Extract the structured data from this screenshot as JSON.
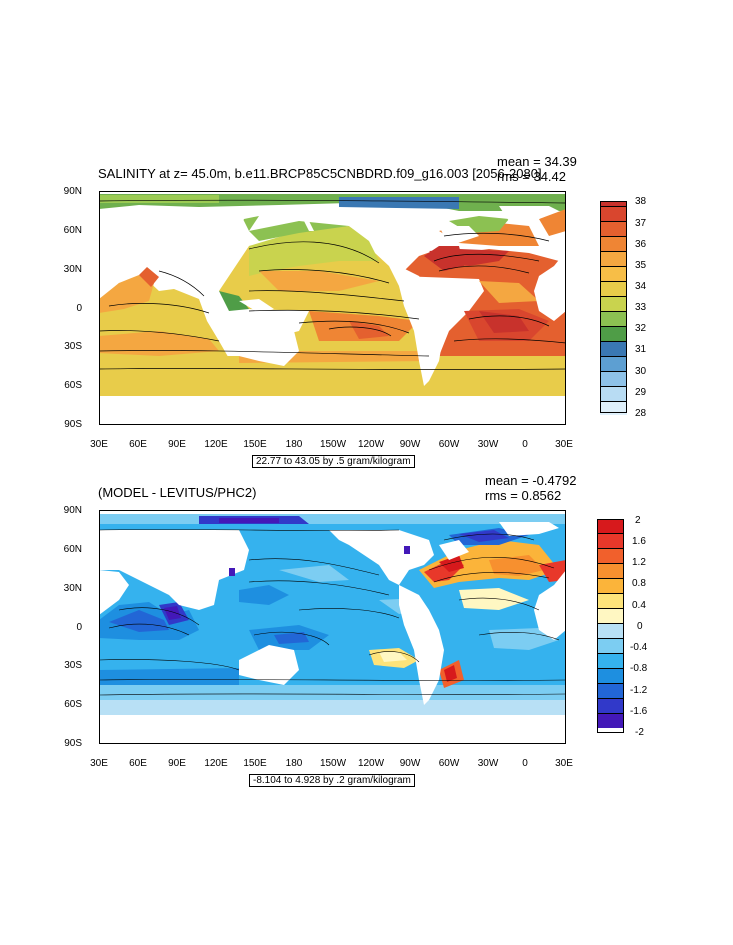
{
  "panels": [
    {
      "title": "SALINITY at z=  45.0m, b.e11.BRCP85C5CNBDRD.f09_g16.003 [2056-2080]",
      "mean": "mean = 34.39",
      "rms": "rms = 34.42",
      "y_ticks": [
        "90N",
        "60N",
        "30N",
        "0",
        "30S",
        "60S",
        "90S"
      ],
      "x_ticks": [
        "30E",
        "60E",
        "90E",
        "120E",
        "150E",
        "180",
        "150W",
        "120W",
        "90W",
        "60W",
        "30W",
        "0",
        "30E"
      ],
      "contour_info": "22.77 to 43.05 by .5 gram/kilogram",
      "colorbar": {
        "labels": [
          "38",
          "37",
          "36",
          "35",
          "34",
          "33",
          "32",
          "31",
          "30",
          "29",
          "28"
        ],
        "colors": [
          "#c8322c",
          "#d9462e",
          "#e4602f",
          "#ef8534",
          "#f4a741",
          "#e8cc4a",
          "#c9d34e",
          "#8cc152",
          "#4f9d47",
          "#3a78b3",
          "#5d9fd2",
          "#8ec2e8",
          "#b8dcf3",
          "#dff0fb"
        ]
      }
    },
    {
      "title": "(MODEL - LEVITUS/PHC2)",
      "mean": "mean = -0.4792",
      "rms": "rms = 0.8562",
      "y_ticks": [
        "90N",
        "60N",
        "30N",
        "0",
        "30S",
        "60S",
        "90S"
      ],
      "x_ticks": [
        "30E",
        "60E",
        "90E",
        "120E",
        "150E",
        "180",
        "150W",
        "120W",
        "90W",
        "60W",
        "30W",
        "0",
        "30E"
      ],
      "contour_info": "-8.104 to 4.928 by .2 gram/kilogram",
      "colorbar": {
        "labels": [
          "2",
          "1.6",
          "1.2",
          "0.8",
          "0.4",
          "0",
          "-0.4",
          "-0.8",
          "-1.2",
          "-1.6",
          "-2"
        ],
        "colors": [
          "#d7191c",
          "#e8382a",
          "#f1602c",
          "#f7902f",
          "#fbb43a",
          "#fde37a",
          "#fff7c2",
          "#b8e0f5",
          "#7ccdf2",
          "#35b2ee",
          "#1e8fe0",
          "#2266d6",
          "#3139c9",
          "#4318b8"
        ]
      }
    }
  ]
}
